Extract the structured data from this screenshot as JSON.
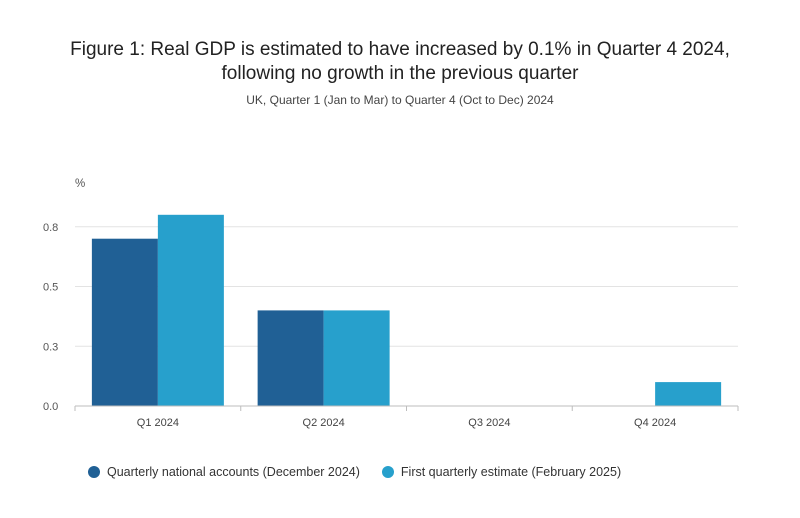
{
  "chart_data": {
    "type": "bar",
    "title": "Figure 1: Real GDP is estimated to have increased by 0.1% in Quarter 4 2024, following no growth in the previous quarter",
    "subtitle": "UK, Quarter 1 (Jan to Mar) to Quarter 4 (Oct to Dec) 2024",
    "ylabel": "%",
    "xlabel": "",
    "categories": [
      "Q1 2024",
      "Q2 2024",
      "Q3 2024",
      "Q4 2024"
    ],
    "series": [
      {
        "name": "Quarterly national accounts (December 2024)",
        "color": "#206095",
        "values": [
          0.7,
          0.4,
          0.0,
          null
        ]
      },
      {
        "name": "First quarterly estimate (February 2025)",
        "color": "#27a0cc",
        "values": [
          0.8,
          0.4,
          0.0,
          0.1
        ]
      }
    ],
    "y_ticks": [
      {
        "value": 0.0,
        "label": "0.0"
      },
      {
        "value": 0.25,
        "label": "0.3"
      },
      {
        "value": 0.5,
        "label": "0.5"
      },
      {
        "value": 0.75,
        "label": "0.8"
      }
    ],
    "ylim": [
      0,
      0.8
    ],
    "grid": true,
    "legend_position": "bottom-left"
  }
}
